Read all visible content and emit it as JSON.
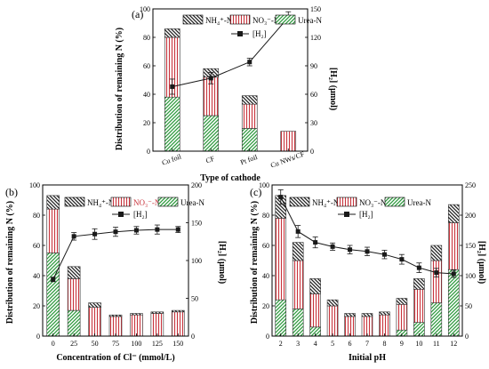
{
  "panels": [
    {
      "label": "(a)",
      "chart_data": {
        "type": "bar",
        "categories": [
          "Cu foil",
          "CF",
          "Pt foil",
          "Cu NWs/CF"
        ],
        "series": [
          {
            "name": "Urea-N",
            "values": [
              38,
              25,
              16,
              0
            ]
          },
          {
            "name": "NO₃⁻-N",
            "values": [
              42,
              27,
              17,
              14
            ]
          },
          {
            "name": "NH₄⁺-N",
            "values": [
              6,
              6,
              6,
              0
            ]
          }
        ],
        "line_series": {
          "name": "[H₂]",
          "values": [
            68,
            77,
            94,
            141
          ],
          "errors": [
            8,
            6,
            4,
            6
          ]
        },
        "xlabel": "Type of cathode",
        "ylabel": "Distribution of remaining N (%)",
        "y2label": "[H₂] (μmol)",
        "ylim": [
          0,
          100
        ],
        "yticks": [
          0,
          20,
          40,
          60,
          80,
          100
        ],
        "y2lim": [
          0,
          150
        ],
        "y2ticks": [
          0,
          30,
          60,
          90,
          120,
          150
        ]
      }
    },
    {
      "label": "(b)",
      "chart_data": {
        "type": "bar",
        "categories": [
          "0",
          "25",
          "50",
          "75",
          "100",
          "125",
          "150"
        ],
        "series": [
          {
            "name": "Urea-N",
            "values": [
              55,
              17,
              0,
              0,
              0,
              0,
              0
            ]
          },
          {
            "name": "NO₃⁻-N",
            "values": [
              29,
              21,
              19,
              13,
              14,
              15,
              16
            ]
          },
          {
            "name": "NH₄⁺-N",
            "values": [
              9,
              8,
              3,
              1,
              1,
              1,
              1
            ]
          }
        ],
        "line_series": {
          "name": "[H₂]",
          "values": [
            75,
            132,
            135,
            138,
            140,
            141,
            141
          ],
          "errors": [
            3,
            5,
            7,
            6,
            5,
            6,
            4
          ]
        },
        "xlabel": "Concentration of Cl⁻ (mmol/L)",
        "ylabel": "Distribution of remaining N (%)",
        "y2label": "[H₂] (μmol)",
        "ylim": [
          0,
          100
        ],
        "yticks": [
          0,
          20,
          40,
          60,
          80,
          100
        ],
        "y2lim": [
          0,
          200
        ],
        "y2ticks": [
          0,
          50,
          100,
          150,
          200
        ]
      }
    },
    {
      "label": "(c)",
      "chart_data": {
        "type": "bar",
        "categories": [
          "2",
          "3",
          "4",
          "5",
          "6",
          "7",
          "8",
          "9",
          "10",
          "11",
          "12"
        ],
        "series": [
          {
            "name": "Urea-N",
            "values": [
              24,
              18,
              6,
              0,
              0,
              0,
              0,
              4,
              9,
              22,
              44
            ]
          },
          {
            "name": "NO₃⁻-N",
            "values": [
              54,
              32,
              22,
              20,
              13,
              13,
              14,
              17,
              22,
              28,
              31
            ]
          },
          {
            "name": "NH₄⁺-N",
            "values": [
              15,
              12,
              10,
              4,
              2,
              2,
              2,
              4,
              7,
              10,
              12
            ]
          }
        ],
        "line_series": {
          "name": "[H₂]",
          "values": [
            230,
            173,
            155,
            148,
            143,
            140,
            135,
            127,
            113,
            105,
            103
          ],
          "errors": [
            12,
            10,
            9,
            6,
            7,
            7,
            7,
            8,
            8,
            7,
            6
          ]
        },
        "xlabel": "Initial pH",
        "ylabel": "Distribution of remaining N (%)",
        "y2label": "[H₂] (μmol)",
        "ylim": [
          0,
          100
        ],
        "yticks": [
          0,
          20,
          40,
          60,
          80,
          100
        ],
        "y2lim": [
          0,
          250
        ],
        "y2ticks": [
          0,
          50,
          100,
          150,
          200,
          250
        ]
      }
    }
  ],
  "colors": {
    "urea": "#2e9a3e",
    "nitrate": "#c8343c",
    "ammonium": "#222222",
    "line": "#1a1a1a",
    "nitrate_label_b": "#c8343c"
  }
}
